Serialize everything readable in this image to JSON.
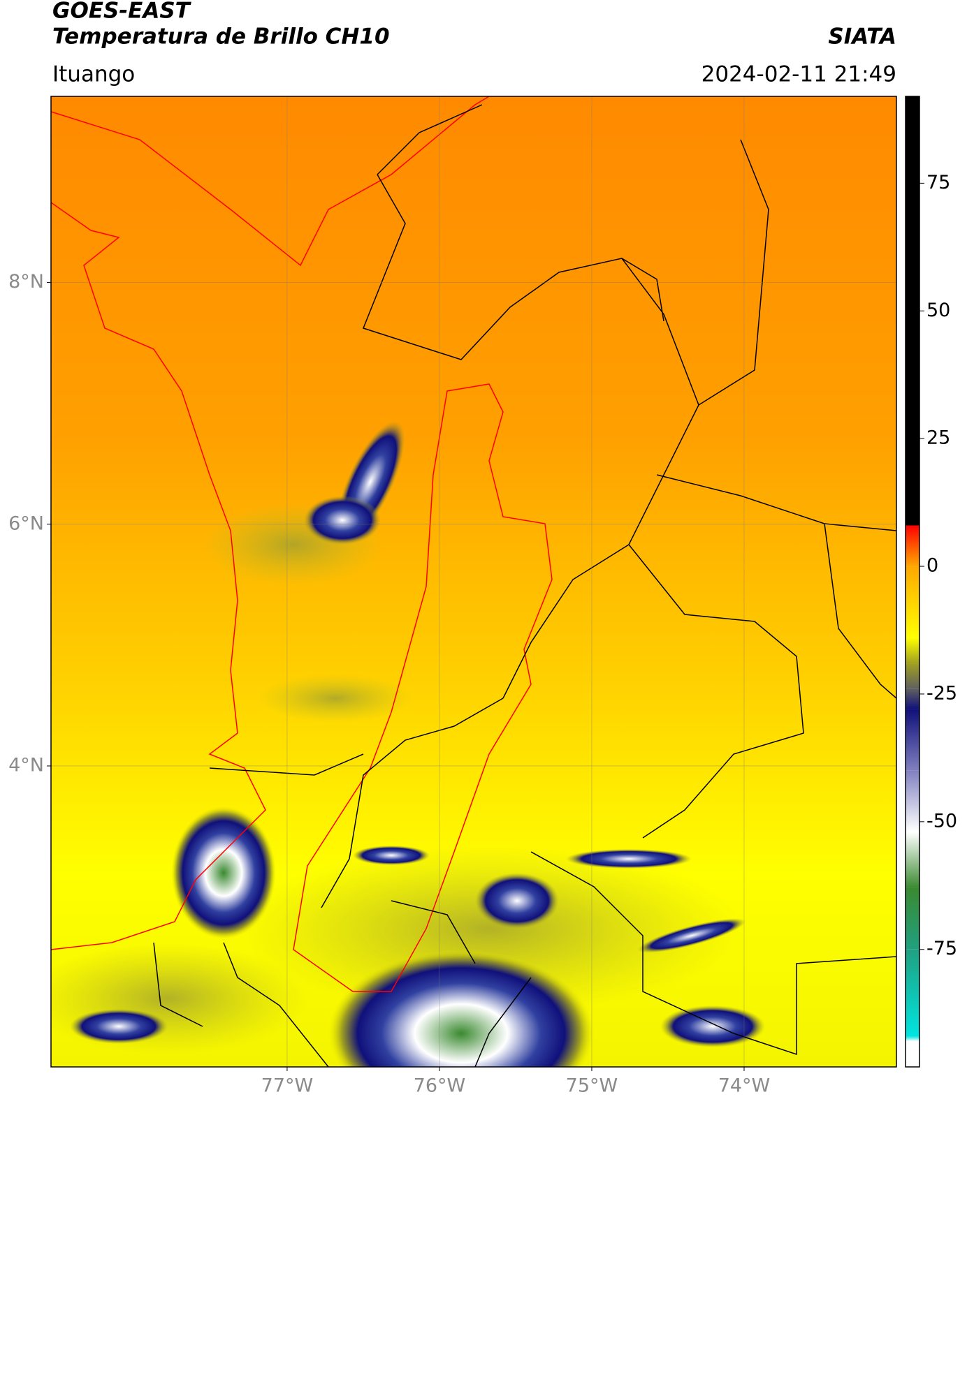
{
  "header": {
    "satellite": "GOES-EAST",
    "product": "Temperatura de Brillo CH10",
    "agency": "SIATA",
    "region": "Ituango",
    "datetime": "2024-02-11 21:49"
  },
  "map": {
    "xlim": [
      -78.55,
      -73.0
    ],
    "ylim": [
      1.51,
      9.54
    ],
    "lon_ticks": [
      {
        "value": -77,
        "label": "77°W"
      },
      {
        "value": -76,
        "label": "76°W"
      },
      {
        "value": -75,
        "label": "75°W"
      },
      {
        "value": -74,
        "label": "74°W"
      }
    ],
    "lat_ticks": [
      {
        "value": 8,
        "label": "8°N"
      },
      {
        "value": 6,
        "label": "6°N"
      },
      {
        "value": 4,
        "label": "4°N"
      }
    ],
    "grid": true
  },
  "colorbar": {
    "ylim": [
      -98,
      92
    ],
    "yticks": [
      -75,
      -50,
      -25,
      0,
      25,
      50,
      75
    ],
    "stops": [
      {
        "value": -98,
        "color": "#ffffff"
      },
      {
        "value": -93,
        "color": "#ffffff"
      },
      {
        "value": -92,
        "color": "#00e5e0"
      },
      {
        "value": -75,
        "color": "#20a080"
      },
      {
        "value": -63,
        "color": "#3a8a30"
      },
      {
        "value": -52,
        "color": "#ffffff"
      },
      {
        "value": -40,
        "color": "#8080c0"
      },
      {
        "value": -28,
        "color": "#10107a"
      },
      {
        "value": -24,
        "color": "#606060"
      },
      {
        "value": -19,
        "color": "#a0a020"
      },
      {
        "value": -14,
        "color": "#ffff00"
      },
      {
        "value": 0,
        "color": "#ffa800"
      },
      {
        "value": 8,
        "color": "#ff0000"
      },
      {
        "value": 8,
        "color": "#000000"
      },
      {
        "value": 92,
        "color": "#000000"
      }
    ]
  }
}
